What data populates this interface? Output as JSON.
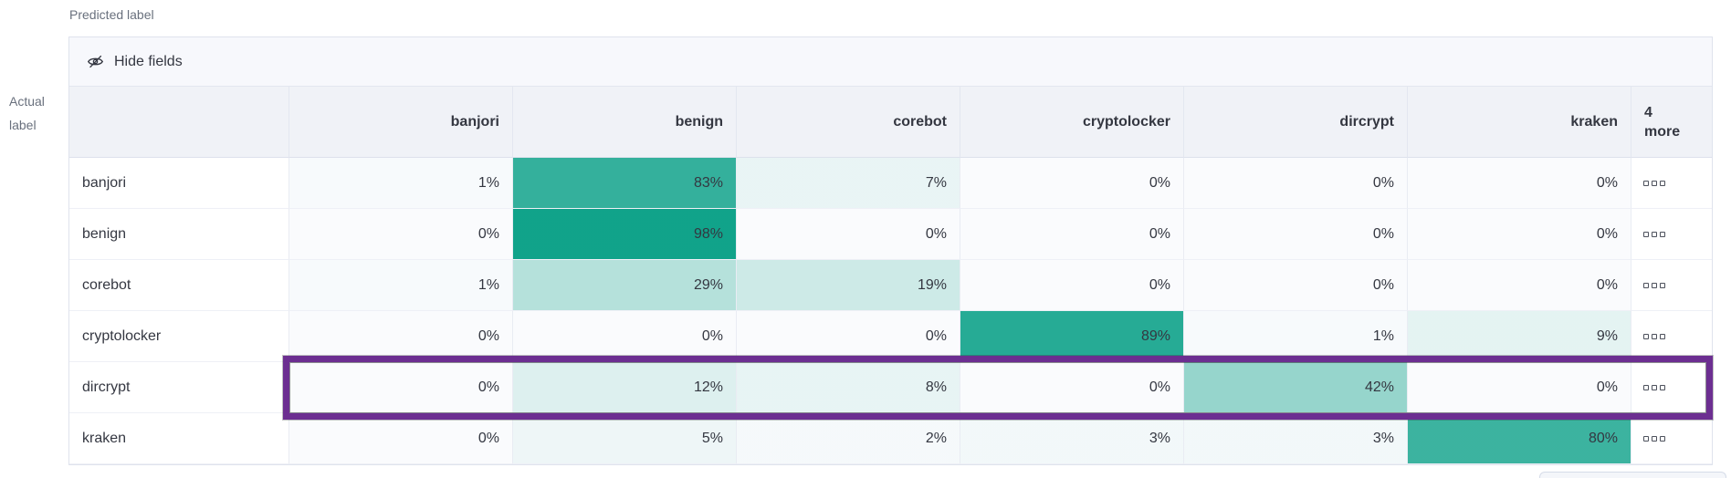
{
  "axis": {
    "predicted_label": "Predicted label",
    "actual_label_lines": [
      "Actual",
      "label"
    ]
  },
  "toolbar": {
    "hide_fields_label": "Hide fields",
    "icon": "eye-slash-icon"
  },
  "grid": {
    "more_header_label": "4 more",
    "row_actions_icon": "ellipsis-boxes-icon"
  },
  "chart_data": {
    "type": "heatmap",
    "x_label": "Predicted label",
    "y_label": "Actual label",
    "x_categories": [
      "banjori",
      "benign",
      "corebot",
      "cryptolocker",
      "dircrypt",
      "kraken"
    ],
    "y_categories": [
      "banjori",
      "benign",
      "corebot",
      "cryptolocker",
      "dircrypt",
      "kraken"
    ],
    "values_percent": [
      [
        1,
        83,
        7,
        0,
        0,
        0
      ],
      [
        0,
        98,
        0,
        0,
        0,
        0
      ],
      [
        1,
        29,
        19,
        0,
        0,
        0
      ],
      [
        0,
        0,
        0,
        89,
        1,
        9
      ],
      [
        0,
        12,
        8,
        0,
        42,
        0
      ],
      [
        0,
        5,
        2,
        3,
        3,
        80
      ]
    ],
    "value_suffix": "%",
    "hidden_columns_label": "4 more",
    "highlighted_row": "dircrypt",
    "legend_position": "none",
    "grid_on": true
  },
  "colors": {
    "heatmap_base_rgb": [
      12,
      161,
      136
    ],
    "cell_default_bg": "#fafbfd",
    "highlight_border": "#6c2e91",
    "header_bg": "#f0f2f7",
    "toolbar_bg": "#f7f8fc",
    "grid_border": "#e3e7f0",
    "text": "#343741",
    "muted_text": "#69707d"
  }
}
